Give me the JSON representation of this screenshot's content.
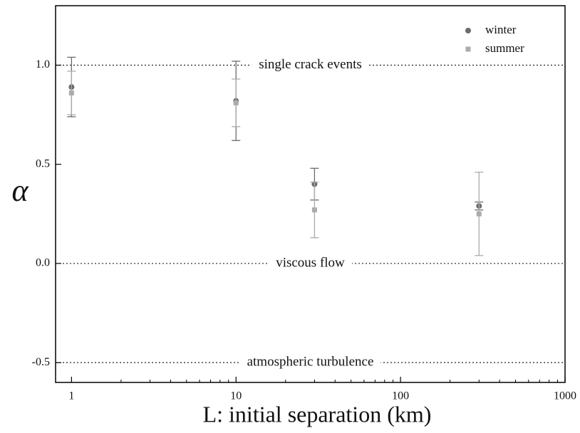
{
  "chart_data": {
    "type": "scatter",
    "xlabel": "L: initial separation (km)",
    "ylabel": "α",
    "x_log": true,
    "xlim": [
      0.8,
      1000
    ],
    "xticks": [
      1,
      10,
      100,
      1000
    ],
    "xminorticks": [
      2,
      3,
      4,
      5,
      6,
      7,
      8,
      9,
      20,
      30,
      40,
      50,
      60,
      70,
      80,
      90,
      200,
      300,
      400,
      500,
      600,
      700,
      800,
      900
    ],
    "ylim": [
      -0.6,
      1.3
    ],
    "yticks": [
      {
        "value": -0.5,
        "label": "-0.5"
      },
      {
        "value": 0,
        "label": "0.0"
      },
      {
        "value": 0.5,
        "label": "0.5"
      },
      {
        "value": 1,
        "label": "1.0"
      }
    ],
    "legend": "upper right",
    "series": [
      {
        "name": "winter",
        "color": "#6b6b6b",
        "marker": "circle",
        "x": [
          1,
          10,
          30,
          300
        ],
        "values": [
          0.89,
          0.82,
          0.4,
          0.29
        ],
        "errors": [
          0.15,
          0.2,
          0.08,
          0.02
        ]
      },
      {
        "name": "summer",
        "color": "#ababab",
        "marker": "square",
        "x": [
          1,
          10,
          30,
          300
        ],
        "values": [
          0.86,
          0.81,
          0.27,
          0.25
        ],
        "errors": [
          0.11,
          0.12,
          0.14,
          0.21
        ]
      }
    ],
    "reference_lines": [
      {
        "value": 1,
        "label": "single crack events"
      },
      {
        "value": 0,
        "label": "viscous flow"
      },
      {
        "value": -0.5,
        "label": "atmospheric turbulence"
      }
    ]
  }
}
